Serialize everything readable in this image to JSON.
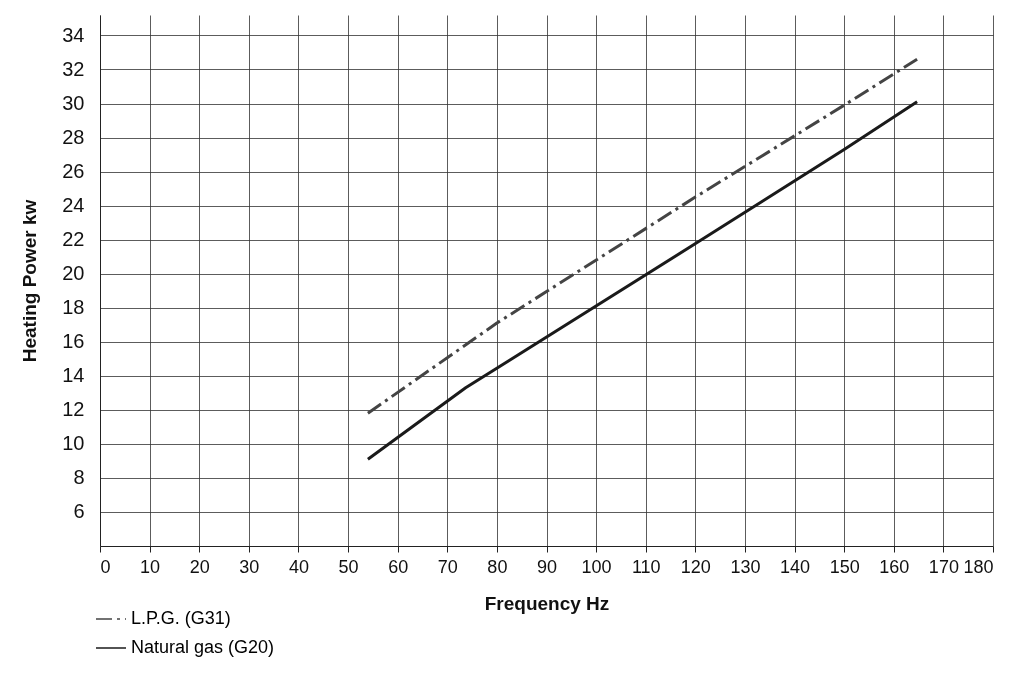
{
  "chart_data": {
    "type": "line",
    "xlabel": "Frequency Hz",
    "ylabel": "Heating Power kw",
    "xlim": [
      0,
      180
    ],
    "xticks": [
      0,
      10,
      20,
      30,
      40,
      50,
      60,
      70,
      80,
      90,
      100,
      110,
      120,
      130,
      140,
      150,
      160,
      170,
      180
    ],
    "ylim": [
      4,
      35.2
    ],
    "yticks": [
      6,
      8,
      10,
      12,
      14,
      16,
      18,
      20,
      22,
      24,
      26,
      28,
      30,
      32,
      34
    ],
    "grid": true,
    "legend": "bottom left",
    "marker": "none",
    "series": [
      {
        "name": "L.P.G. (G31)",
        "color": "#444444",
        "line_style": "dashed",
        "x": [
          54,
          80,
          120,
          150,
          164.7
        ],
        "values": [
          11.8,
          17.1,
          24.5,
          29.9,
          32.6
        ]
      },
      {
        "name": "Natural gas (G20)",
        "color": "#1a1a1a",
        "line_style": "solid",
        "x": [
          54,
          73.7,
          120.2,
          150,
          164.7
        ],
        "values": [
          9.1,
          13.3,
          21.8,
          27.3,
          30.1
        ]
      }
    ]
  }
}
